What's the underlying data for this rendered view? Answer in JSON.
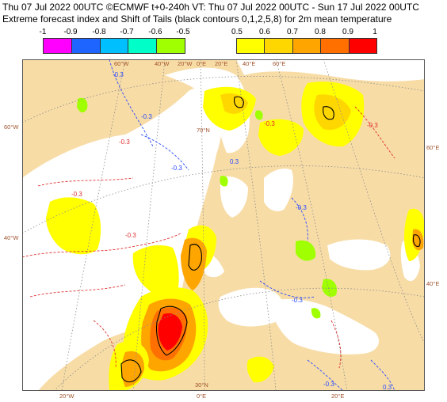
{
  "title_line1": "Thu 07 Jul 2022 00UTC ©ECMWF t+0-240h  VT: Thu 07 Jul 2022 00UTC - Sun 17 Jul 2022 00UTC",
  "title_line2": "Extreme forecast index and Shift of Tails (black contours 0,1,2,5,8) for 2m mean temperature",
  "legend": {
    "negative": {
      "ticks": [
        "-1",
        "-0.9",
        "-0.8",
        "-0.7",
        "-0.6",
        "-0.5"
      ],
      "colors": [
        "#ff00ff",
        "#1e64ff",
        "#00bfff",
        "#00ffc8",
        "#a0ff00"
      ]
    },
    "positive": {
      "ticks": [
        "0.5",
        "0.6",
        "0.7",
        "0.8",
        "0.9",
        "1"
      ],
      "colors": [
        "#ffff00",
        "#ffd700",
        "#ffa500",
        "#ff7000",
        "#ff0000"
      ]
    }
  },
  "map": {
    "background_color": "#f7dca6",
    "sea_color": "#ffffff",
    "grid_labels": {
      "top": [
        "60°W",
        "40°W",
        "20°W",
        "0°E",
        "20°E",
        "40°E",
        "60°E"
      ],
      "left": [
        "60°W",
        "40°W"
      ],
      "right": [
        "60°E",
        "40°E"
      ],
      "bottom": [
        "20°W",
        "0°E",
        "20°E"
      ],
      "inner": [
        "70°N",
        "30°N"
      ]
    },
    "contour_labels": [
      "-0.3",
      "-0.3",
      "-0.3",
      "0.3",
      "-0.3",
      "-0.3",
      "-0.3",
      "-0.3",
      "-0.3",
      "-0.3",
      "-0.3",
      "-0.3",
      "0.3"
    ]
  }
}
